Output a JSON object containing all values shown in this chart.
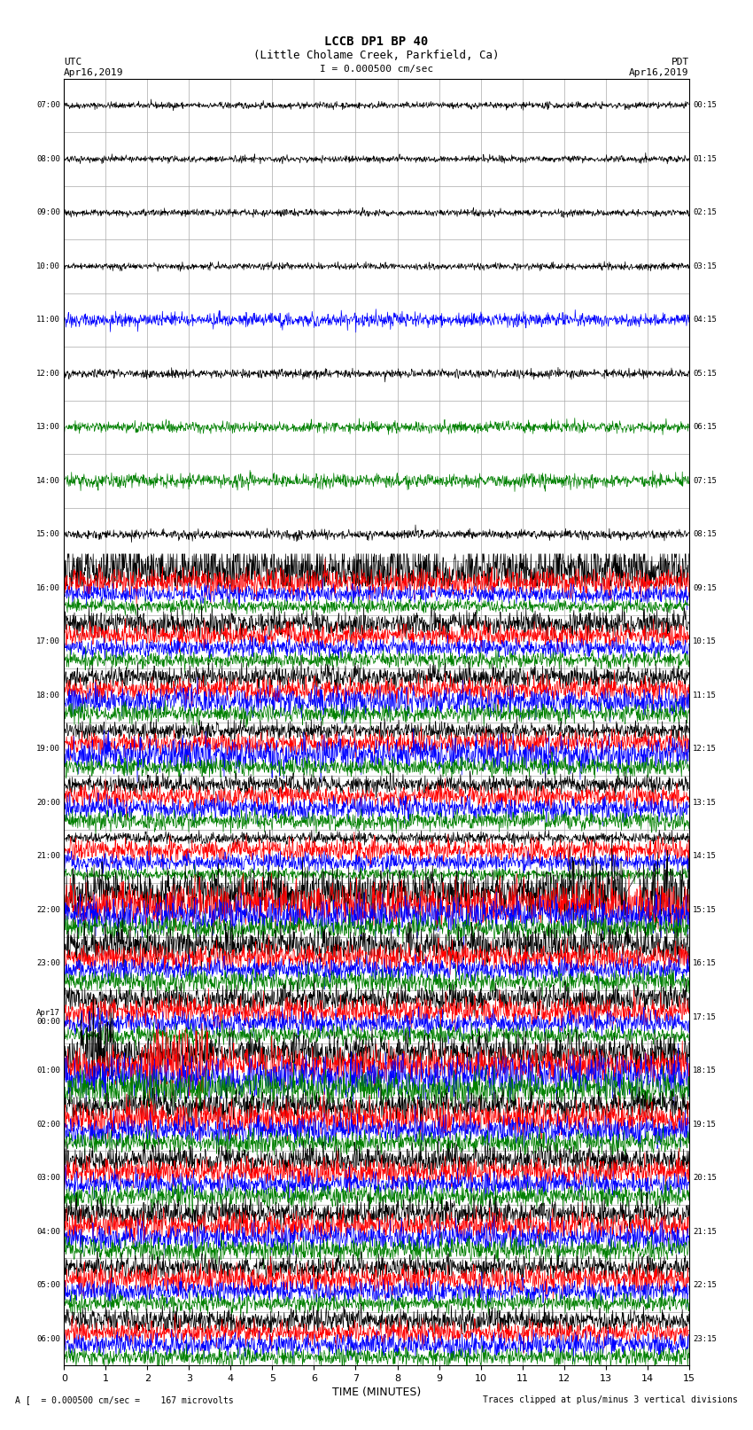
{
  "title_line1": "LCCB DP1 BP 40",
  "title_line2": "(Little Cholame Creek, Parkfield, Ca)",
  "scale_label": "I = 0.000500 cm/sec",
  "utc_label": "UTC",
  "utc_date": "Apr16,2019",
  "pdt_label": "PDT",
  "pdt_date": "Apr16,2019",
  "xlabel": "TIME (MINUTES)",
  "bottom_left": "A [  = 0.000500 cm/sec =    167 microvolts",
  "bottom_right": "Traces clipped at plus/minus 3 vertical divisions",
  "xlim": [
    0,
    15
  ],
  "xticks": [
    0,
    1,
    2,
    3,
    4,
    5,
    6,
    7,
    8,
    9,
    10,
    11,
    12,
    13,
    14,
    15
  ],
  "bg_color": "#ffffff",
  "grid_color": "#aaaaaa",
  "trace_colors": [
    "black",
    "red",
    "#cc0000",
    "blue",
    "green",
    "black"
  ],
  "row_labels_utc": [
    "07:00",
    "08:00",
    "09:00",
    "10:00",
    "11:00",
    "12:00",
    "13:00",
    "14:00",
    "15:00",
    "16:00",
    "17:00",
    "18:00",
    "19:00",
    "20:00",
    "21:00",
    "22:00",
    "23:00",
    "Apr17\\n00:00",
    "01:00",
    "02:00",
    "03:00",
    "04:00",
    "05:00",
    "06:00"
  ],
  "row_labels_pdt": [
    "00:15",
    "01:15",
    "02:15",
    "03:15",
    "04:15",
    "05:15",
    "06:15",
    "07:15",
    "08:15",
    "09:15",
    "10:15",
    "11:15",
    "12:15",
    "13:15",
    "14:15",
    "15:15",
    "16:15",
    "17:15",
    "18:15",
    "19:15",
    "20:15",
    "21:15",
    "22:15",
    "23:15"
  ],
  "num_rows": 24,
  "traces_per_row_config": {
    "0": 1,
    "1": 1,
    "2": 1,
    "3": 1,
    "4": 1,
    "5": 1,
    "6": 1,
    "7": 1,
    "8": 1,
    "9": 4,
    "10": 4,
    "11": 4,
    "12": 4,
    "13": 4,
    "14": 4,
    "15": 4,
    "16": 4,
    "17": 4,
    "18": 4,
    "19": 4,
    "20": 4,
    "21": 4,
    "22": 4,
    "23": 4
  }
}
